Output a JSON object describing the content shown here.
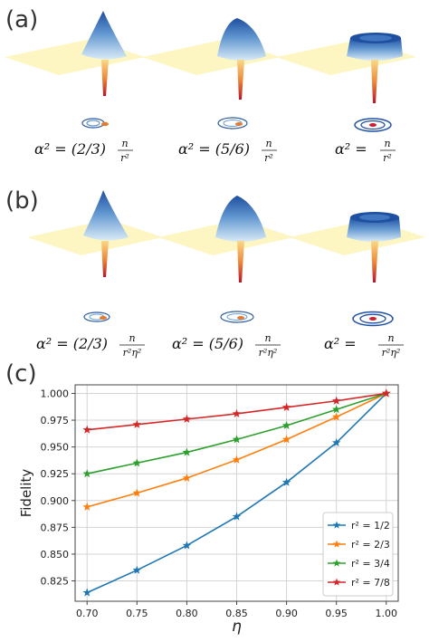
{
  "panels": {
    "a": {
      "label": "(a)",
      "equations": [
        {
          "pre": "α² = (2/3)",
          "frac_num": "n",
          "frac_den": "r²"
        },
        {
          "pre": "α² = (5/6)",
          "frac_num": "n",
          "frac_den": "r²"
        },
        {
          "pre": "α² =",
          "frac_num": "n",
          "frac_den": "r²"
        }
      ]
    },
    "b": {
      "label": "(b)",
      "equations": [
        {
          "pre": "α² = (2/3)",
          "frac_num": "n",
          "frac_den": "r²η²"
        },
        {
          "pre": "α² = (5/6)",
          "frac_num": "n",
          "frac_den": "r²η²"
        },
        {
          "pre": "α² =",
          "frac_num": "n",
          "frac_den": "r²η²"
        }
      ]
    },
    "c": {
      "label": "(c)"
    }
  },
  "surface_colors": {
    "plane": "#fdf6c3",
    "peak_dark": "#1f4fa0",
    "peak_light": "#cfe3f4",
    "dip_top": "#f6c26b",
    "dip_bottom": "#b2182b"
  },
  "chart_data": {
    "type": "line",
    "xlabel": "η",
    "ylabel": "Fidelity",
    "x": [
      0.7,
      0.75,
      0.8,
      0.85,
      0.9,
      0.95,
      1.0
    ],
    "x_ticks": [
      "0.70",
      "0.75",
      "0.80",
      "0.85",
      "0.90",
      "0.95",
      "1.00"
    ],
    "y_ticks": [
      "0.825",
      "0.850",
      "0.875",
      "0.900",
      "0.925",
      "0.950",
      "0.975",
      "1.000"
    ],
    "xlim": [
      0.688,
      1.012
    ],
    "ylim": [
      0.806,
      1.008
    ],
    "grid": true,
    "legend_position": "lower-right",
    "marker": "star",
    "series": [
      {
        "name": "r² = 1/2",
        "color": "#1f77b4",
        "values": [
          0.814,
          0.835,
          0.858,
          0.885,
          0.917,
          0.954,
          1.0
        ]
      },
      {
        "name": "r² = 2/3",
        "color": "#ff7f0e",
        "values": [
          0.894,
          0.907,
          0.921,
          0.938,
          0.957,
          0.978,
          1.0
        ]
      },
      {
        "name": "r² = 3/4",
        "color": "#2ca02c",
        "values": [
          0.925,
          0.935,
          0.945,
          0.957,
          0.97,
          0.985,
          1.0
        ]
      },
      {
        "name": "r² = 7/8",
        "color": "#d62728",
        "values": [
          0.966,
          0.971,
          0.976,
          0.981,
          0.987,
          0.993,
          1.0
        ]
      }
    ]
  }
}
